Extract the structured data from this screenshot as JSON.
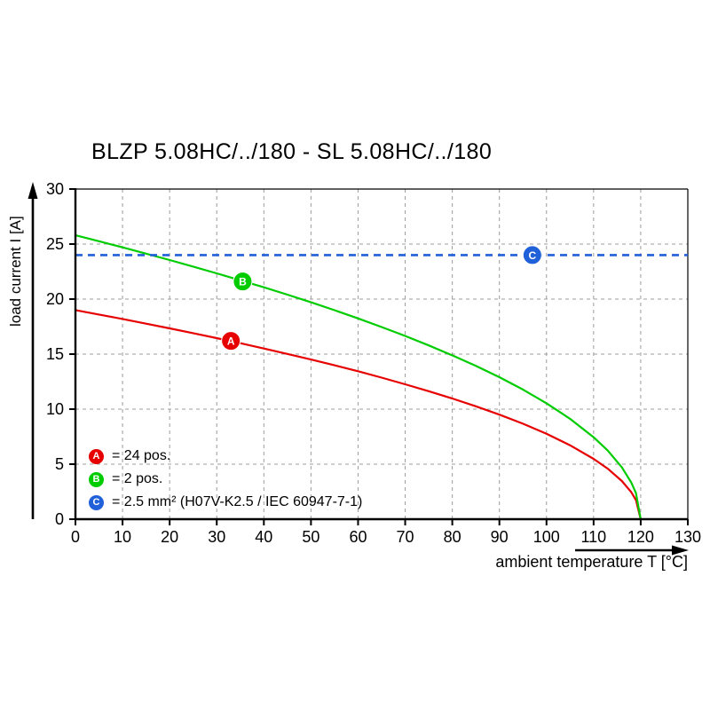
{
  "page": {
    "background": "#ffffff"
  },
  "chart_data": {
    "type": "line",
    "title": "BLZP 5.08HC/../180 - SL 5.08HC/../180",
    "xlabel": "ambient temperature T [°C]",
    "ylabel": "load current I [A]",
    "xlim": [
      0,
      130
    ],
    "ylim": [
      0,
      30
    ],
    "x_ticks": [
      0,
      10,
      20,
      30,
      40,
      50,
      60,
      70,
      80,
      90,
      100,
      110,
      120,
      130
    ],
    "y_ticks": [
      0,
      5,
      10,
      15,
      20,
      25,
      30
    ],
    "grid": {
      "style": "dashed",
      "color": "#9c9c9c"
    },
    "axis_color": "#000000",
    "legend_position": "bottom-left-inside",
    "series": [
      {
        "name": "A",
        "legend_label": "= 24 pos.",
        "color": "#e60000",
        "style": "solid",
        "marker": {
          "x": 33,
          "y": 16.2
        },
        "points": [
          [
            0,
            19
          ],
          [
            5,
            18.6
          ],
          [
            10,
            18.19
          ],
          [
            15,
            17.77
          ],
          [
            20,
            17.34
          ],
          [
            25,
            16.9
          ],
          [
            30,
            16.45
          ],
          [
            35,
            15.99
          ],
          [
            40,
            15.51
          ],
          [
            45,
            15.02
          ],
          [
            50,
            14.51
          ],
          [
            55,
            13.98
          ],
          [
            60,
            13.44
          ],
          [
            65,
            12.86
          ],
          [
            70,
            12.26
          ],
          [
            75,
            11.63
          ],
          [
            80,
            10.97
          ],
          [
            85,
            10.26
          ],
          [
            90,
            9.5
          ],
          [
            95,
            8.68
          ],
          [
            100,
            7.76
          ],
          [
            105,
            6.72
          ],
          [
            110,
            5.48
          ],
          [
            113,
            4.59
          ],
          [
            116,
            3.47
          ],
          [
            118,
            2.45
          ],
          [
            119,
            1.73
          ],
          [
            120,
            0
          ]
        ]
      },
      {
        "name": "B",
        "legend_label": "= 2 pos.",
        "color": "#00cc00",
        "style": "solid",
        "marker": {
          "x": 35.5,
          "y": 21.6
        },
        "points": [
          [
            0,
            25.8
          ],
          [
            5,
            25.26
          ],
          [
            10,
            24.7
          ],
          [
            15,
            24.13
          ],
          [
            20,
            23.55
          ],
          [
            25,
            22.95
          ],
          [
            30,
            22.34
          ],
          [
            35,
            21.7
          ],
          [
            40,
            21.07
          ],
          [
            45,
            20.4
          ],
          [
            50,
            19.71
          ],
          [
            55,
            18.99
          ],
          [
            60,
            18.24
          ],
          [
            65,
            17.46
          ],
          [
            70,
            16.65
          ],
          [
            75,
            15.79
          ],
          [
            80,
            14.89
          ],
          [
            85,
            13.93
          ],
          [
            90,
            12.9
          ],
          [
            95,
            11.78
          ],
          [
            100,
            10.53
          ],
          [
            105,
            9.12
          ],
          [
            110,
            7.45
          ],
          [
            113,
            6.23
          ],
          [
            116,
            4.71
          ],
          [
            118,
            3.33
          ],
          [
            119,
            2.36
          ],
          [
            120,
            0
          ]
        ]
      },
      {
        "name": "C",
        "legend_label": "= 2.5 mm² (H07V-K2.5 / IEC 60947-7-1)",
        "color": "#2060d8",
        "style": "dashed",
        "marker": {
          "x": 97,
          "y": 24
        },
        "points": [
          [
            0,
            24
          ],
          [
            130,
            24
          ]
        ]
      }
    ]
  }
}
